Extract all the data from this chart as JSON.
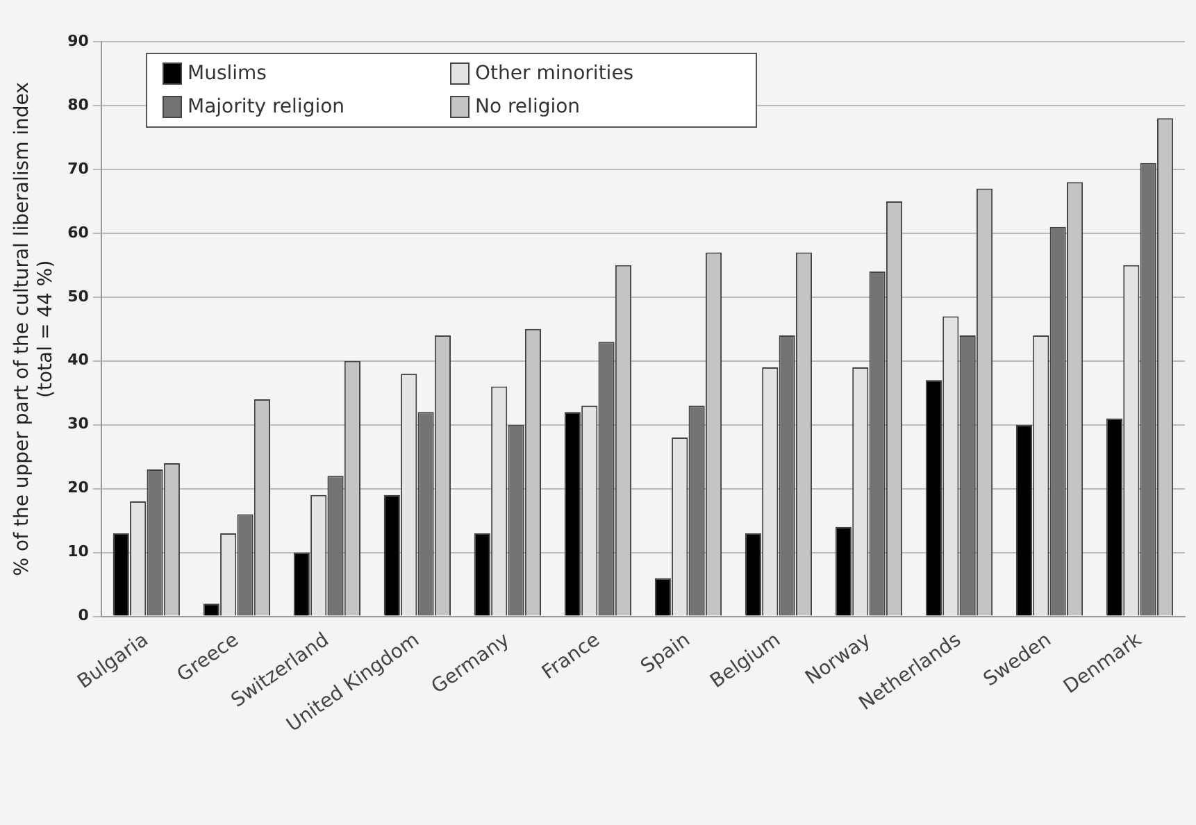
{
  "chart_data": {
    "type": "bar",
    "ylabel": "% of the upper part of the cultural liberalism index\n(total = 44 %)",
    "categories": [
      "Bulgaria",
      "Greece",
      "Switzerland",
      "United Kingdom",
      "Germany",
      "France",
      "Spain",
      "Belgium",
      "Norway",
      "Netherlands",
      "Sweden",
      "Denmark"
    ],
    "series": [
      {
        "name": "Muslims",
        "color": "#000000",
        "values": [
          13,
          2,
          10,
          19,
          13,
          32,
          6,
          13,
          14,
          37,
          30,
          31
        ]
      },
      {
        "name": "Other minorities",
        "color": "#e4e4e4",
        "values": [
          18,
          13,
          19,
          38,
          36,
          33,
          28,
          39,
          39,
          47,
          44,
          55
        ]
      },
      {
        "name": "Majority religion",
        "color": "#737373",
        "values": [
          23,
          16,
          22,
          32,
          30,
          43,
          33,
          44,
          54,
          44,
          61,
          71
        ]
      },
      {
        "name": "No religion",
        "color": "#c4c4c4",
        "values": [
          24,
          34,
          40,
          44,
          45,
          55,
          57,
          57,
          65,
          67,
          68,
          78
        ]
      }
    ],
    "ylim": [
      0,
      90
    ],
    "yticks": [
      0,
      10,
      20,
      30,
      40,
      50,
      60,
      70,
      80,
      90
    ],
    "grid": "y",
    "legend": "top left"
  }
}
